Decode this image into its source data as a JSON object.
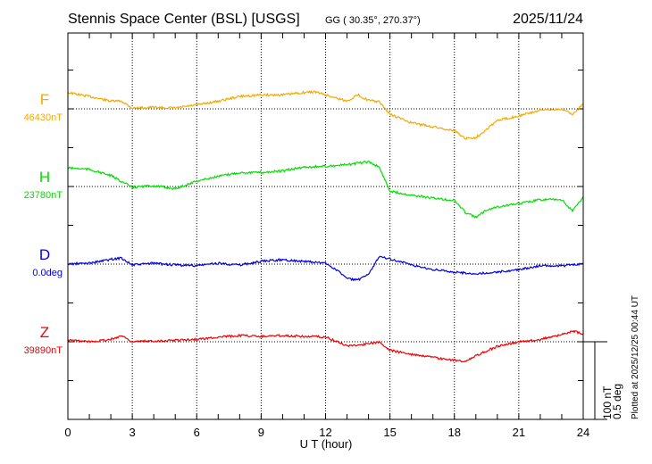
{
  "header": {
    "station": "Stennis Space Center (BSL)  [USGS]",
    "coords": "GG ( 30.35°, 270.37°)",
    "date": "2025/11/24"
  },
  "footer": {
    "plotted": "Plotted at 2025/12/25 00:44 UT",
    "scale_nt": "100 nT",
    "scale_deg": "0.5 deg"
  },
  "chart_data": {
    "type": "line",
    "xlabel": "U T (hour)",
    "xlim": [
      0,
      24
    ],
    "xticks": [
      "0",
      "3",
      "6",
      "9",
      "12",
      "15",
      "18",
      "21",
      "24"
    ],
    "grid": true,
    "scale": {
      "nT_per_bar": 100,
      "deg_per_bar": 0.5
    },
    "series": [
      {
        "name": "F",
        "baseline_label": "46430nT",
        "unit": "nT",
        "color": "#f5a800",
        "x": [
          0,
          1,
          2,
          2.5,
          3,
          4,
          5,
          6,
          7,
          8,
          9,
          10,
          11,
          11.5,
          12,
          13,
          13.5,
          14,
          14.5,
          15,
          16,
          17,
          18,
          18.5,
          19,
          19.5,
          20,
          21,
          22,
          23,
          23.5,
          24
        ],
        "y": [
          21,
          16,
          10,
          10,
          1,
          2,
          1,
          5,
          10,
          16,
          18,
          18,
          21,
          22,
          18,
          10,
          18,
          11,
          9,
          -7,
          -18,
          -23,
          -28,
          -38,
          -37,
          -26,
          -15,
          -9,
          -2,
          0,
          -7,
          6
        ]
      },
      {
        "name": "H",
        "baseline_label": "23780nT",
        "unit": "nT",
        "color": "#00e000",
        "x": [
          0,
          1,
          2,
          3,
          4,
          5,
          6,
          7,
          8,
          9,
          10,
          11,
          12,
          13,
          14,
          14.5,
          15,
          16,
          17,
          18,
          18.5,
          19,
          19.5,
          20,
          21,
          22,
          23,
          23.5,
          24
        ],
        "y": [
          24,
          22,
          14,
          -1,
          1,
          -3,
          7,
          13,
          18,
          18,
          20,
          25,
          26,
          28,
          32,
          25,
          -6,
          -11,
          -15,
          -18,
          -33,
          -40,
          -30,
          -26,
          -22,
          -17,
          -17,
          -32,
          -13
        ]
      },
      {
        "name": "D",
        "baseline_label": "0.0deg",
        "unit": "deg",
        "color": "#0000e0",
        "x": [
          0,
          1,
          2,
          2.5,
          3,
          4,
          5,
          6,
          7,
          8,
          9,
          10,
          11,
          12,
          12.5,
          13,
          13.5,
          14,
          14.5,
          15,
          16,
          17,
          18,
          19,
          20,
          21,
          22,
          23,
          24
        ],
        "y": [
          0,
          0.006,
          0.03,
          0.04,
          -0.006,
          0.006,
          -0.006,
          -0.01,
          0.006,
          -0.006,
          0.017,
          0.029,
          0.017,
          0.006,
          -0.035,
          -0.092,
          -0.103,
          -0.069,
          0.052,
          0.034,
          -0.006,
          -0.035,
          -0.052,
          -0.063,
          -0.052,
          -0.035,
          -0.011,
          -0.011,
          0
        ]
      },
      {
        "name": "Z",
        "baseline_label": "39890nT",
        "unit": "nT",
        "color": "#f00000",
        "x": [
          0,
          1,
          2,
          2.5,
          3,
          4,
          5,
          6,
          7,
          8,
          9,
          10,
          11,
          12,
          13,
          14,
          14.5,
          15,
          16,
          17,
          18,
          18.5,
          19,
          20,
          21,
          22,
          23,
          23.5,
          24
        ],
        "y": [
          2,
          0,
          3,
          8,
          0,
          1,
          2,
          3,
          6,
          8,
          7,
          8,
          7,
          6,
          -5,
          -3,
          0,
          -11,
          -16,
          -20,
          -24,
          -25,
          -18,
          -6,
          0,
          3,
          9,
          14,
          10
        ]
      }
    ]
  }
}
